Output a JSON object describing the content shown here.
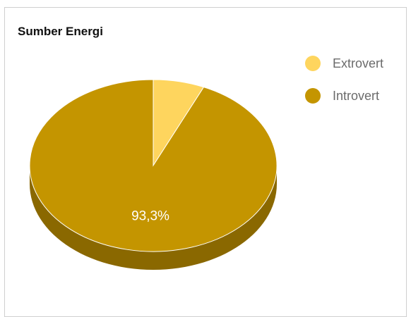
{
  "chart_data": {
    "type": "pie",
    "title": "Sumber Energi",
    "categories": [
      "Extrovert",
      "Introvert"
    ],
    "values": [
      6.7,
      93.3
    ],
    "colors": [
      "#fed55e",
      "#c49500"
    ],
    "side_colors": [
      "#b89a40",
      "#8a6800"
    ],
    "data_labels": [
      "",
      "93,3%"
    ],
    "legend_position": "right",
    "style": "3d"
  }
}
